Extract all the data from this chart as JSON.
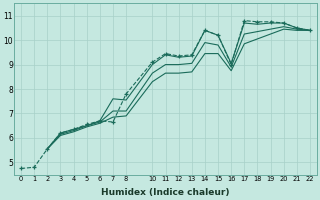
{
  "xlabel": "Humidex (Indice chaleur)",
  "ylabel": "",
  "background_color": "#c5e8e0",
  "grid_color": "#a8d0c8",
  "line_color": "#1a6b5a",
  "xlim": [
    -0.5,
    22.5
  ],
  "ylim": [
    4.5,
    11.5
  ],
  "yticks": [
    5,
    6,
    7,
    8,
    9,
    10,
    11
  ],
  "xticks": [
    0,
    1,
    2,
    3,
    4,
    5,
    6,
    7,
    8,
    10,
    11,
    12,
    13,
    14,
    15,
    16,
    17,
    18,
    19,
    20,
    21,
    22
  ],
  "series": [
    {
      "x": [
        0,
        1,
        2,
        3,
        4,
        5,
        6,
        7,
        8,
        10,
        11,
        12,
        13,
        14,
        15,
        16,
        17,
        18,
        19,
        20,
        21,
        22
      ],
      "y": [
        4.75,
        4.8,
        5.55,
        6.2,
        6.35,
        6.55,
        6.7,
        6.65,
        7.8,
        9.1,
        9.45,
        9.35,
        9.4,
        10.4,
        10.2,
        9.0,
        10.8,
        10.75,
        10.75,
        10.7,
        10.5,
        10.4
      ],
      "marker": true,
      "linestyle": "--"
    },
    {
      "x": [
        2,
        3,
        4,
        5,
        6,
        7,
        8,
        10,
        11,
        12,
        13,
        14,
        15,
        16,
        17,
        18,
        19,
        20,
        21,
        22
      ],
      "y": [
        5.55,
        6.2,
        6.35,
        6.5,
        6.7,
        7.6,
        7.55,
        9.0,
        9.4,
        9.3,
        9.35,
        10.4,
        10.2,
        9.05,
        10.7,
        10.65,
        10.7,
        10.7,
        10.5,
        10.4
      ],
      "marker": false,
      "linestyle": "-"
    },
    {
      "x": [
        2,
        3,
        4,
        5,
        6,
        7,
        8,
        10,
        11,
        12,
        13,
        14,
        15,
        16,
        17,
        18,
        19,
        20,
        21,
        22
      ],
      "y": [
        5.55,
        6.15,
        6.3,
        6.5,
        6.65,
        7.1,
        7.1,
        8.65,
        9.0,
        9.0,
        9.05,
        9.9,
        9.8,
        8.9,
        10.25,
        10.35,
        10.45,
        10.55,
        10.45,
        10.4
      ],
      "marker": false,
      "linestyle": "-"
    },
    {
      "x": [
        2,
        3,
        4,
        5,
        6,
        7,
        8,
        10,
        11,
        12,
        13,
        14,
        15,
        16,
        17,
        18,
        19,
        20,
        21,
        22
      ],
      "y": [
        5.55,
        6.1,
        6.25,
        6.45,
        6.6,
        6.85,
        6.9,
        8.3,
        8.65,
        8.65,
        8.7,
        9.45,
        9.45,
        8.75,
        9.85,
        10.05,
        10.25,
        10.45,
        10.4,
        10.4
      ],
      "marker": false,
      "linestyle": "-"
    }
  ]
}
